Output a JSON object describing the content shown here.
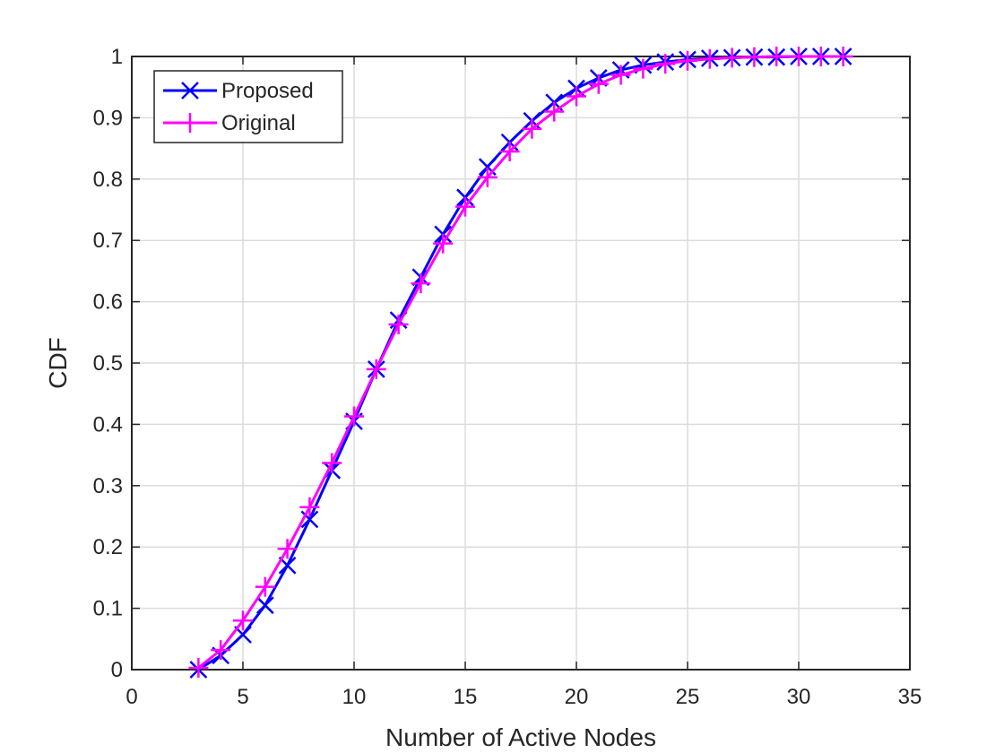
{
  "chart_data": {
    "type": "line",
    "title": "",
    "xlabel": "Number of Active Nodes",
    "ylabel": "CDF",
    "xlim": [
      0,
      35
    ],
    "ylim": [
      0,
      1
    ],
    "xticks": [
      "0",
      "5",
      "10",
      "15",
      "20",
      "25",
      "30",
      "35"
    ],
    "yticks": [
      "0",
      "0.1",
      "0.2",
      "0.3",
      "0.4",
      "0.5",
      "0.6",
      "0.7",
      "0.8",
      "0.9",
      "1"
    ],
    "grid": true,
    "legend_position": "top-left",
    "x": [
      3,
      4,
      5,
      6,
      7,
      8,
      9,
      10,
      11,
      12,
      13,
      14,
      15,
      16,
      17,
      18,
      19,
      20,
      21,
      22,
      23,
      24,
      25,
      26,
      27,
      28,
      29,
      30,
      31,
      32
    ],
    "series": [
      {
        "name": "Proposed",
        "color": "#0000ff",
        "marker": "x",
        "values": [
          0.0,
          0.023,
          0.057,
          0.105,
          0.17,
          0.245,
          0.325,
          0.405,
          0.49,
          0.57,
          0.64,
          0.71,
          0.77,
          0.82,
          0.86,
          0.895,
          0.925,
          0.948,
          0.965,
          0.978,
          0.986,
          0.991,
          0.995,
          0.997,
          0.998,
          0.999,
          0.999,
          1.0,
          1.0,
          1.0
        ]
      },
      {
        "name": "Original",
        "color": "#ff00ff",
        "marker": "+",
        "values": [
          0.003,
          0.032,
          0.08,
          0.135,
          0.197,
          0.265,
          0.337,
          0.413,
          0.49,
          0.563,
          0.63,
          0.695,
          0.755,
          0.803,
          0.845,
          0.882,
          0.91,
          0.935,
          0.955,
          0.97,
          0.98,
          0.988,
          0.993,
          0.996,
          0.998,
          0.999,
          1.0,
          1.0,
          1.0,
          1.0
        ]
      }
    ]
  }
}
